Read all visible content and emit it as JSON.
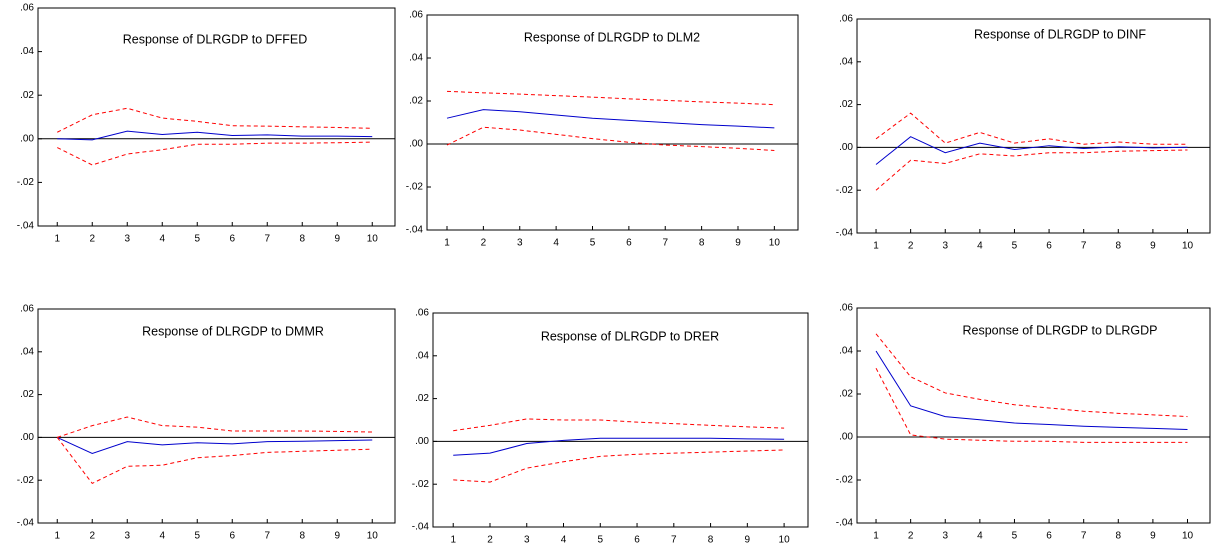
{
  "chart_data": [
    {
      "type": "line",
      "title": "Response of DLRGDP to DFFED",
      "x": [
        1,
        2,
        3,
        4,
        5,
        6,
        7,
        8,
        9,
        10
      ],
      "xlim": [
        0.45,
        10.65
      ],
      "ylim": [
        -0.04,
        0.06
      ],
      "yticks": [
        {
          "value": -0.04,
          "label": "-.04"
        },
        {
          "value": -0.02,
          "label": "-.02"
        },
        {
          "value": 0,
          "label": ".00"
        },
        {
          "value": 0.02,
          "label": ".02"
        },
        {
          "value": 0.04,
          "label": ".04"
        },
        {
          "value": 0.06,
          "label": ".06"
        }
      ],
      "series": [
        {
          "color": "#0000cc",
          "dashed": false,
          "values": [
            0,
            -0.0005,
            0.0035,
            0.002,
            0.003,
            0.0015,
            0.0018,
            0.0012,
            0.0012,
            0.001
          ]
        },
        {
          "color": "#ff0000",
          "dashed": true,
          "values": [
            0.003,
            0.011,
            0.014,
            0.0095,
            0.008,
            0.006,
            0.0058,
            0.0055,
            0.0052,
            0.0048
          ]
        },
        {
          "color": "#ff0000",
          "dashed": true,
          "values": [
            -0.004,
            -0.012,
            -0.007,
            -0.005,
            -0.0025,
            -0.0025,
            -0.002,
            -0.002,
            -0.0018,
            -0.0015
          ]
        }
      ]
    },
    {
      "type": "line",
      "title": "Response of DLRGDP to DLM2",
      "x": [
        1,
        2,
        3,
        4,
        5,
        6,
        7,
        8,
        9,
        10
      ],
      "xlim": [
        0.45,
        10.65
      ],
      "ylim": [
        -0.04,
        0.06
      ],
      "yticks": [
        {
          "value": -0.04,
          "label": "-.04"
        },
        {
          "value": -0.02,
          "label": "-.02"
        },
        {
          "value": 0,
          "label": ".00"
        },
        {
          "value": 0.02,
          "label": ".02"
        },
        {
          "value": 0.04,
          "label": ".04"
        },
        {
          "value": 0.06,
          "label": ".06"
        }
      ],
      "series": [
        {
          "color": "#0000cc",
          "dashed": false,
          "values": [
            0.012,
            0.016,
            0.015,
            0.0135,
            0.012,
            0.011,
            0.01,
            0.009,
            0.0083,
            0.0075
          ]
        },
        {
          "color": "#ff0000",
          "dashed": true,
          "values": [
            0.0245,
            0.0238,
            0.0232,
            0.0225,
            0.0218,
            0.021,
            0.0203,
            0.0196,
            0.019,
            0.0183
          ]
        },
        {
          "color": "#ff0000",
          "dashed": true,
          "values": [
            -0.0005,
            0.0078,
            0.0065,
            0.0045,
            0.0025,
            0.0008,
            -0.0005,
            -0.0012,
            -0.002,
            -0.003
          ]
        }
      ]
    },
    {
      "type": "line",
      "title": "Response of DLRGDP to DINF",
      "x": [
        1,
        2,
        3,
        4,
        5,
        6,
        7,
        8,
        9,
        10
      ],
      "xlim": [
        0.45,
        10.65
      ],
      "ylim": [
        -0.04,
        0.06
      ],
      "yticks": [
        {
          "value": -0.04,
          "label": "-.04"
        },
        {
          "value": -0.02,
          "label": "-.02"
        },
        {
          "value": 0,
          "label": ".00"
        },
        {
          "value": 0.02,
          "label": ".02"
        },
        {
          "value": 0.04,
          "label": ".04"
        },
        {
          "value": 0.06,
          "label": ".06"
        }
      ],
      "series": [
        {
          "color": "#0000cc",
          "dashed": false,
          "values": [
            -0.008,
            0.005,
            -0.0025,
            0.002,
            -0.001,
            0.0008,
            -0.0005,
            0.0003,
            -0.0002,
            0.0001
          ]
        },
        {
          "color": "#ff0000",
          "dashed": true,
          "values": [
            0.004,
            0.016,
            0.002,
            0.007,
            0.002,
            0.004,
            0.0015,
            0.0025,
            0.0015,
            0.0015
          ]
        },
        {
          "color": "#ff0000",
          "dashed": true,
          "values": [
            -0.02,
            -0.006,
            -0.0075,
            -0.003,
            -0.004,
            -0.0025,
            -0.0025,
            -0.0018,
            -0.0015,
            -0.0012
          ]
        }
      ]
    },
    {
      "type": "line",
      "title": "Response of DLRGDP to DMMR",
      "x": [
        1,
        2,
        3,
        4,
        5,
        6,
        7,
        8,
        9,
        10
      ],
      "xlim": [
        0.45,
        10.65
      ],
      "ylim": [
        -0.04,
        0.06
      ],
      "yticks": [
        {
          "value": -0.04,
          "label": "-.04"
        },
        {
          "value": -0.02,
          "label": "-.02"
        },
        {
          "value": 0,
          "label": ".00"
        },
        {
          "value": 0.02,
          "label": ".02"
        },
        {
          "value": 0.04,
          "label": ".04"
        },
        {
          "value": 0.06,
          "label": ".06"
        }
      ],
      "series": [
        {
          "color": "#0000cc",
          "dashed": false,
          "values": [
            0,
            -0.0075,
            -0.002,
            -0.0035,
            -0.0025,
            -0.003,
            -0.002,
            -0.0018,
            -0.0015,
            -0.0012
          ]
        },
        {
          "color": "#ff0000",
          "dashed": true,
          "values": [
            0,
            0.0055,
            0.0095,
            0.0055,
            0.0048,
            0.003,
            0.003,
            0.003,
            0.0028,
            0.0025
          ]
        },
        {
          "color": "#ff0000",
          "dashed": true,
          "values": [
            0,
            -0.0215,
            -0.0135,
            -0.013,
            -0.0095,
            -0.0085,
            -0.007,
            -0.0065,
            -0.006,
            -0.0055
          ]
        }
      ]
    },
    {
      "type": "line",
      "title": "Response of DLRGDP to DRER",
      "x": [
        1,
        2,
        3,
        4,
        5,
        6,
        7,
        8,
        9,
        10
      ],
      "xlim": [
        0.45,
        10.65
      ],
      "ylim": [
        -0.04,
        0.06
      ],
      "yticks": [
        {
          "value": -0.04,
          "label": "-.04"
        },
        {
          "value": -0.02,
          "label": "-.02"
        },
        {
          "value": 0,
          "label": ".00"
        },
        {
          "value": 0.02,
          "label": ".02"
        },
        {
          "value": 0.04,
          "label": ".04"
        },
        {
          "value": 0.06,
          "label": ".06"
        }
      ],
      "series": [
        {
          "color": "#0000cc",
          "dashed": false,
          "values": [
            -0.0065,
            -0.0055,
            -0.001,
            0.0005,
            0.0015,
            0.0015,
            0.0015,
            0.0015,
            0.0012,
            0.001
          ]
        },
        {
          "color": "#ff0000",
          "dashed": true,
          "values": [
            0.005,
            0.0075,
            0.0105,
            0.01,
            0.01,
            0.009,
            0.0083,
            0.0075,
            0.0068,
            0.0062
          ]
        },
        {
          "color": "#ff0000",
          "dashed": true,
          "values": [
            -0.018,
            -0.019,
            -0.0125,
            -0.0095,
            -0.007,
            -0.006,
            -0.0055,
            -0.005,
            -0.0045,
            -0.004
          ]
        }
      ]
    },
    {
      "type": "line",
      "title": "Response of DLRGDP to DLRGDP",
      "x": [
        1,
        2,
        3,
        4,
        5,
        6,
        7,
        8,
        9,
        10
      ],
      "xlim": [
        0.45,
        10.65
      ],
      "ylim": [
        -0.04,
        0.06
      ],
      "yticks": [
        {
          "value": -0.04,
          "label": "-.04"
        },
        {
          "value": -0.02,
          "label": "-.02"
        },
        {
          "value": 0,
          "label": ".00"
        },
        {
          "value": 0.02,
          "label": ".02"
        },
        {
          "value": 0.04,
          "label": ".04"
        },
        {
          "value": 0.06,
          "label": ".06"
        }
      ],
      "series": [
        {
          "color": "#0000cc",
          "dashed": false,
          "values": [
            0.04,
            0.0145,
            0.0095,
            0.008,
            0.0065,
            0.0058,
            0.005,
            0.0045,
            0.004,
            0.0035
          ]
        },
        {
          "color": "#ff0000",
          "dashed": true,
          "values": [
            0.048,
            0.028,
            0.0205,
            0.0175,
            0.015,
            0.0135,
            0.012,
            0.011,
            0.0103,
            0.0095
          ]
        },
        {
          "color": "#ff0000",
          "dashed": true,
          "values": [
            0.032,
            0.001,
            -0.001,
            -0.0015,
            -0.002,
            -0.002,
            -0.0025,
            -0.0025,
            -0.0025,
            -0.0025
          ]
        }
      ]
    }
  ]
}
